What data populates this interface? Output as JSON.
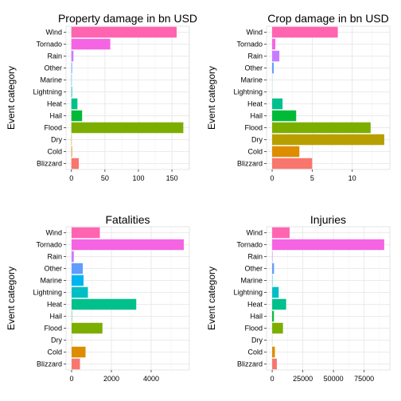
{
  "chart_data": [
    {
      "type": "bar",
      "orientation": "horizontal",
      "title": "Property damage in bn USD",
      "xlabel": "",
      "ylabel": "Event category",
      "categories": [
        "Blizzard",
        "Cold",
        "Dry",
        "Flood",
        "Hail",
        "Heat",
        "Lightning",
        "Marine",
        "Other",
        "Rain",
        "Tornado",
        "Wind"
      ],
      "values": [
        11,
        1,
        0.5,
        167,
        16,
        9,
        1,
        0.5,
        1,
        3,
        58,
        157
      ],
      "xticks": [
        0,
        50,
        100,
        150
      ],
      "xlim": [
        -8,
        176
      ],
      "grid": true,
      "legend": "none"
    },
    {
      "type": "bar",
      "orientation": "horizontal",
      "title": "Crop damage in bn USD",
      "xlabel": "",
      "ylabel": "Event category",
      "categories": [
        "Blizzard",
        "Cold",
        "Dry",
        "Flood",
        "Hail",
        "Heat",
        "Lightning",
        "Marine",
        "Other",
        "Rain",
        "Tornado",
        "Wind"
      ],
      "values": [
        5,
        3.4,
        14,
        12.3,
        3,
        1.3,
        0.01,
        0.01,
        0.2,
        0.9,
        0.4,
        8.2
      ],
      "xticks": [
        0,
        5,
        10
      ],
      "xlim": [
        -0.7,
        14.7
      ],
      "grid": true,
      "legend": "none"
    },
    {
      "type": "bar",
      "orientation": "horizontal",
      "title": "Fatalities",
      "xlabel": "",
      "ylabel": "Event category",
      "categories": [
        "Blizzard",
        "Cold",
        "Dry",
        "Flood",
        "Hail",
        "Heat",
        "Lightning",
        "Marine",
        "Other",
        "Rain",
        "Tornado",
        "Wind"
      ],
      "values": [
        420,
        700,
        10,
        1550,
        15,
        3250,
        820,
        600,
        560,
        110,
        5640,
        1420
      ],
      "xticks": [
        0,
        2000,
        4000
      ],
      "xlim": [
        -280,
        5920
      ],
      "grid": true,
      "legend": "none"
    },
    {
      "type": "bar",
      "orientation": "horizontal",
      "title": "Injuries",
      "xlabel": "",
      "ylabel": "Event category",
      "categories": [
        "Blizzard",
        "Cold",
        "Dry",
        "Flood",
        "Hail",
        "Heat",
        "Lightning",
        "Marine",
        "Other",
        "Rain",
        "Tornado",
        "Wind"
      ],
      "values": [
        3800,
        2200,
        50,
        8800,
        1400,
        11400,
        5300,
        250,
        1500,
        300,
        91400,
        14200
      ],
      "xticks": [
        0,
        25000,
        50000,
        75000
      ],
      "xlim": [
        -4600,
        96000
      ],
      "grid": true,
      "legend": "none"
    }
  ],
  "colors": {
    "Blizzard": "#F8766D",
    "Cold": "#DE8C00",
    "Dry": "#B79F00",
    "Flood": "#7CAE00",
    "Hail": "#00BA38",
    "Heat": "#00C08B",
    "Lightning": "#00BFC4",
    "Marine": "#00B4F0",
    "Other": "#619CFF",
    "Rain": "#C77CFF",
    "Tornado": "#F564E3",
    "Wind": "#FF64B0"
  }
}
